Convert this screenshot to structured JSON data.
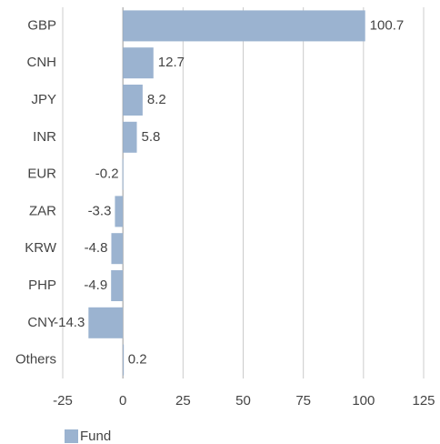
{
  "chart_data": {
    "type": "bar",
    "orientation": "horizontal",
    "categories": [
      "GBP",
      "CNH",
      "JPY",
      "INR",
      "EUR",
      "ZAR",
      "KRW",
      "PHP",
      "CNY",
      "Others"
    ],
    "series": [
      {
        "name": "Fund",
        "color": "#9bb3d0",
        "values": [
          100.7,
          12.7,
          8.2,
          5.8,
          -0.2,
          -3.3,
          -4.8,
          -4.9,
          -14.3,
          0.2
        ]
      }
    ],
    "xlim": [
      -25,
      125
    ],
    "xticks": [
      -25,
      0,
      25,
      50,
      75,
      100,
      125
    ],
    "grid": true,
    "legend": "bottom-left"
  }
}
